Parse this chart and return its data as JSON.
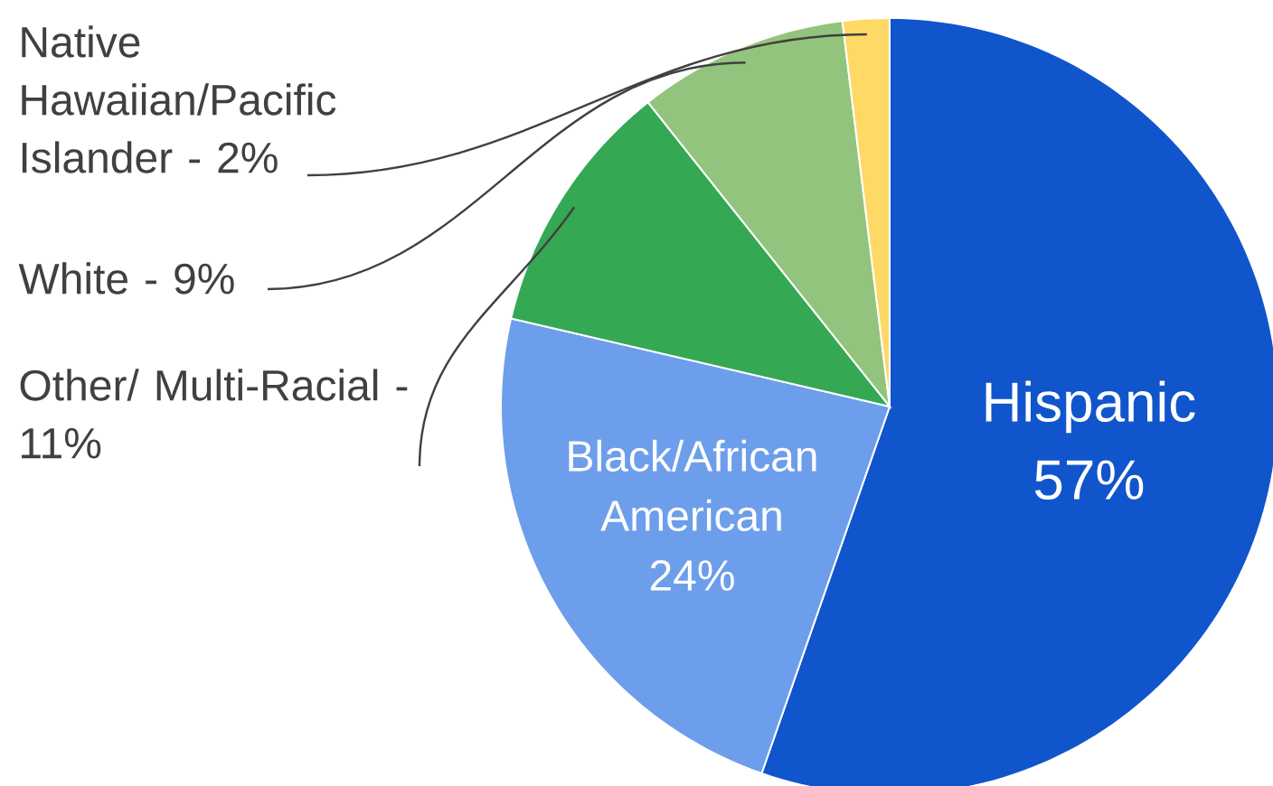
{
  "chart_data": {
    "type": "pie",
    "categories": [
      "Hispanic",
      "Black/African American",
      "Other/ Multi-Racial - 11%",
      "White - 9%",
      "Native Hawaiian/Pacific Islander - 2%"
    ],
    "values": [
      57,
      24,
      11,
      9,
      2
    ],
    "value_labels": [
      "57%",
      "24%",
      null,
      null,
      null
    ],
    "colors": [
      "#1155cc",
      "#6d9eeb",
      "#34a853",
      "#93c47d",
      "#ffd966"
    ]
  }
}
